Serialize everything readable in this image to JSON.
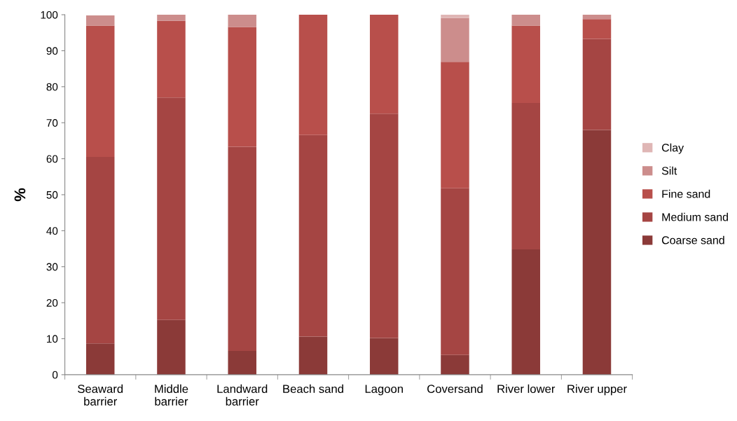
{
  "chart_data": {
    "type": "bar",
    "stacked": true,
    "ylabel": "%",
    "categories": [
      "Seaward\nbarrier",
      "Middle\nbarrier",
      "Landward\nbarrier",
      "Beach sand",
      "Lagoon",
      "Coversand",
      "River lower",
      "River upper"
    ],
    "series": [
      {
        "name": "Coarse sand",
        "color": "#8b3a38",
        "values": [
          8.7,
          15.2,
          6.6,
          10.6,
          10.2,
          5.5,
          34.8,
          68
        ]
      },
      {
        "name": "Medium sand",
        "color": "#a54543",
        "values": [
          51.8,
          61.8,
          56.7,
          56,
          62.3,
          46.3,
          40.7,
          25.3
        ]
      },
      {
        "name": "Fine sand",
        "color": "#b84f4b",
        "values": [
          36.5,
          21.3,
          33.3,
          33.4,
          27.5,
          35.1,
          21.5,
          5.5
        ]
      },
      {
        "name": "Silt",
        "color": "#cc8d8c",
        "values": [
          2.8,
          1.7,
          3.4,
          0,
          0,
          12.2,
          3,
          1.2
        ]
      },
      {
        "name": "Clay",
        "color": "#dfb6b5",
        "values": [
          0,
          0,
          0,
          0,
          0,
          0.9,
          0,
          0
        ]
      }
    ],
    "ylim": [
      0,
      100
    ],
    "yticks": [
      0,
      10,
      20,
      30,
      40,
      50,
      60,
      70,
      80,
      90,
      100
    ],
    "grid": false,
    "legend": "right"
  }
}
